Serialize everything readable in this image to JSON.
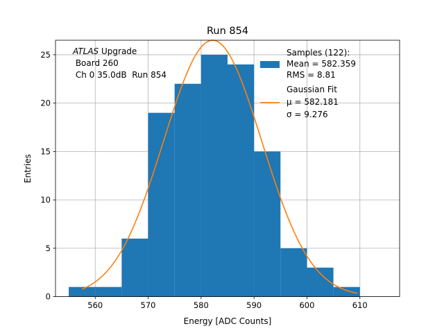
{
  "colors": {
    "bar": "#1f77b4",
    "fit": "#ff7f0e",
    "grid": "#b0b0b0",
    "axis": "#000000"
  },
  "annotation": {
    "line1_italic": "ATLAS",
    "line1_rest": " Upgrade",
    "line2": " Board 260",
    "line3": " Ch 0 35.0dB  Run 854"
  },
  "legend": {
    "samples_line1": "Samples (122):",
    "samples_line2": "Mean = 582.359",
    "samples_line3": "RMS = 8.81",
    "fit_line1": "Gaussian Fit",
    "fit_line2": "μ = 582.181",
    "fit_line3": "σ = 9.276"
  },
  "chart_data": {
    "type": "bar",
    "title": "Run 854",
    "xlabel": "Energy [ADC Counts]",
    "ylabel": "Entries",
    "xlim": [
      552.5,
      617.5
    ],
    "ylim": [
      0,
      26.5
    ],
    "grid": true,
    "legend_position": "top-right",
    "x_ticks": [
      560,
      570,
      580,
      590,
      600,
      610
    ],
    "y_ticks": [
      0,
      5,
      10,
      15,
      20,
      25
    ],
    "bins": [
      {
        "start": 555,
        "end": 560,
        "value": 1
      },
      {
        "start": 560,
        "end": 565,
        "value": 1
      },
      {
        "start": 565,
        "end": 570,
        "value": 6
      },
      {
        "start": 570,
        "end": 575,
        "value": 19
      },
      {
        "start": 575,
        "end": 580,
        "value": 22
      },
      {
        "start": 580,
        "end": 585,
        "value": 25
      },
      {
        "start": 585,
        "end": 590,
        "value": 24
      },
      {
        "start": 590,
        "end": 595,
        "value": 15
      },
      {
        "start": 595,
        "end": 600,
        "value": 5
      },
      {
        "start": 600,
        "end": 605,
        "value": 3
      },
      {
        "start": 605,
        "end": 610,
        "value": 1
      }
    ],
    "series": [
      {
        "name": "Samples (122)",
        "kind": "histogram"
      },
      {
        "name": "Gaussian Fit",
        "kind": "line",
        "mu": 582.181,
        "sigma": 9.276,
        "amplitude": 26.5,
        "x_range": [
          557.5,
          609.5
        ]
      }
    ]
  }
}
